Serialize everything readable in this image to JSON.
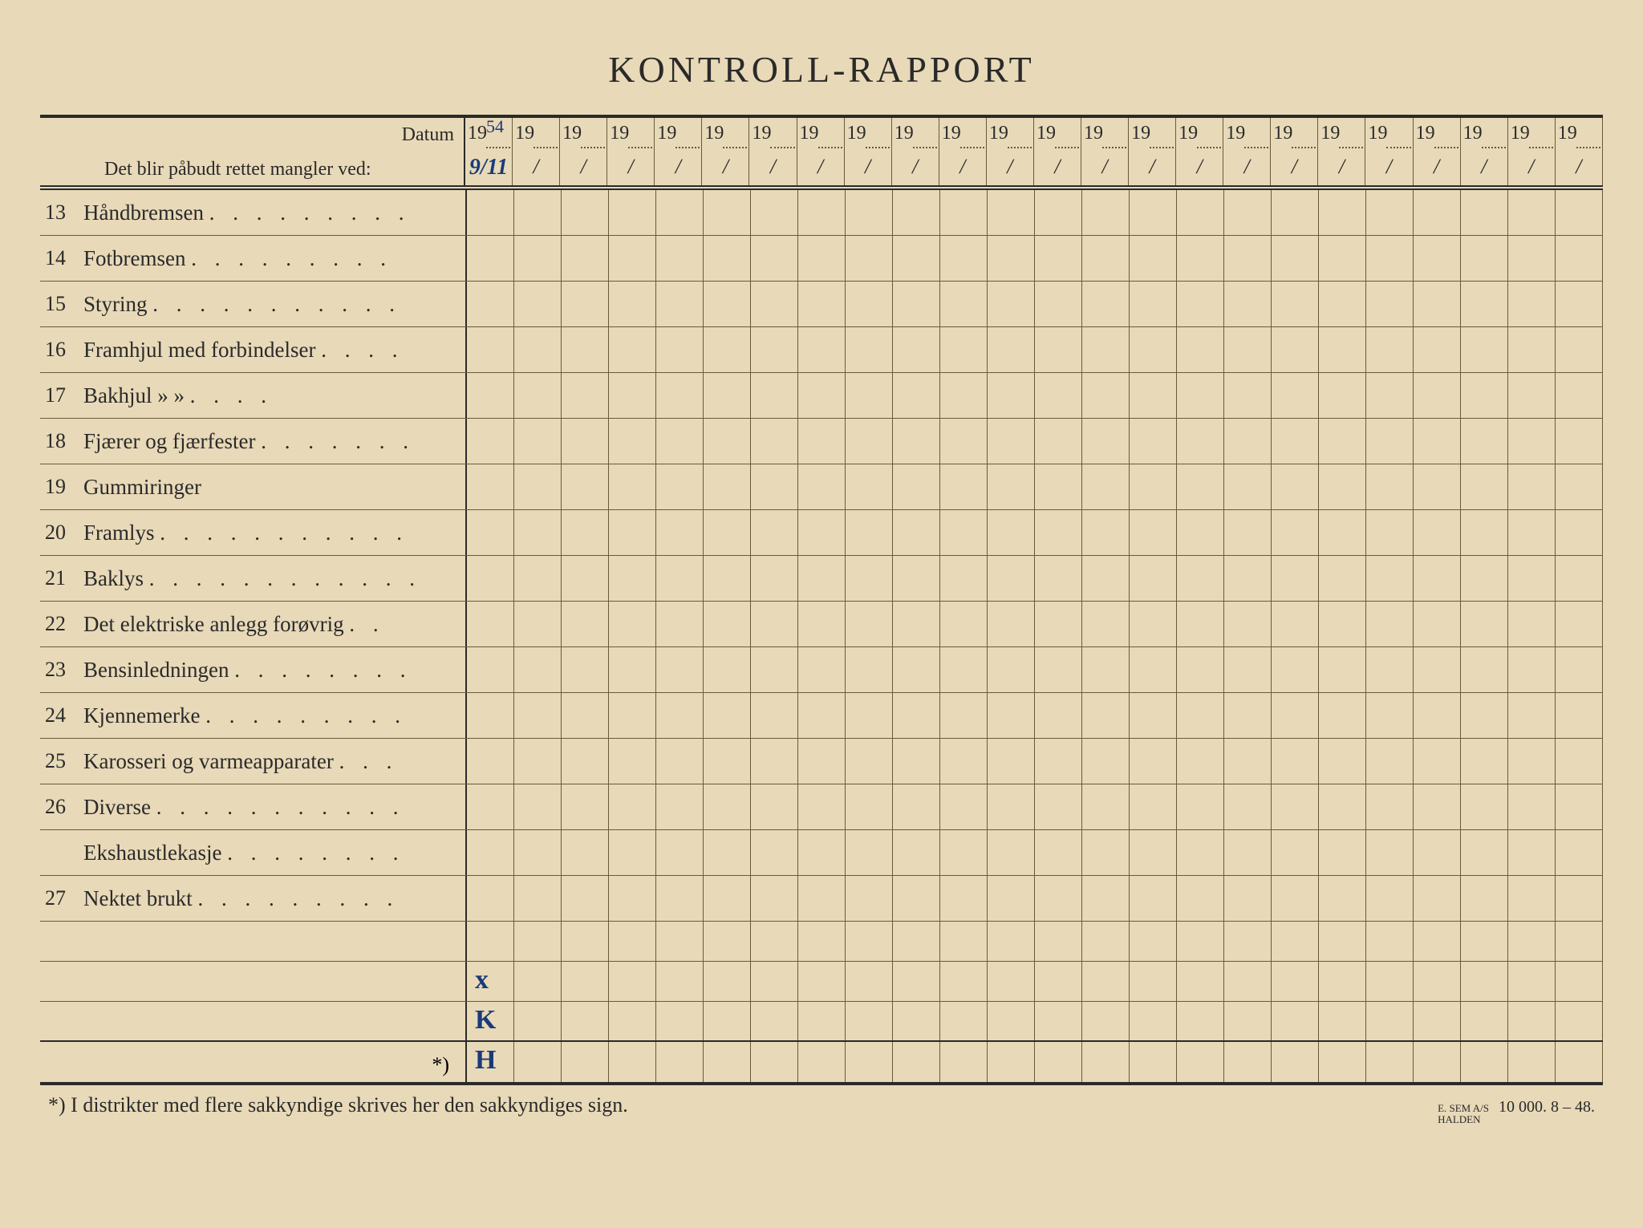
{
  "title": "KONTROLL-RAPPORT",
  "header": {
    "datum_label": "Datum",
    "mangler_label": "Det blir påbudt rettet mangler ved:",
    "year_prefix": "19",
    "slash": "/",
    "first_year_handwritten": "54",
    "first_date_handwritten": "9/11",
    "num_date_columns": 24
  },
  "items": [
    {
      "num": "13",
      "label": "Håndbremsen",
      "dots": ". . . . . . . . ."
    },
    {
      "num": "14",
      "label": "Fotbremsen",
      "dots": " . . . . . . . . ."
    },
    {
      "num": "15",
      "label": "Styring",
      "dots": " . . . . . . . . . . ."
    },
    {
      "num": "16",
      "label": "Framhjul med forbindelser",
      "dots": ". . . ."
    },
    {
      "num": "17",
      "label": "Bakhjul",
      "ditto": "»        »",
      "dots": "   . . . ."
    },
    {
      "num": "18",
      "label": "Fjærer og fjærfester",
      "dots": ". . . . . . ."
    },
    {
      "num": "19",
      "label": "Gummiringer",
      "dots": ""
    },
    {
      "num": "20",
      "label": "Framlys",
      "dots": ". . . . . . . . . . ."
    },
    {
      "num": "21",
      "label": "Baklys",
      "dots": " . . . . . . . . . . . ."
    },
    {
      "num": "22",
      "label": "Det elektriske anlegg forøvrig",
      "dots": " . ."
    },
    {
      "num": "23",
      "label": "Bensinledningen",
      "dots": " . . . . . . . ."
    },
    {
      "num": "24",
      "label": "Kjennemerke",
      "dots": " . . . . . . . . ."
    },
    {
      "num": "25",
      "label": "Karosseri og varmeapparater",
      "dots": " . . ."
    },
    {
      "num": "26",
      "label": "Diverse",
      "dots": " . . . . . . . . . . ."
    },
    {
      "num": "",
      "label": "Ekshaustlekasje",
      "dots": ". . . . . . . ."
    },
    {
      "num": "27",
      "label": "Nektet brukt",
      "dots": " . . . . . . . . ."
    }
  ],
  "bottom_marks": [
    "x",
    "K",
    "H"
  ],
  "asterisk_label": "*)",
  "footer": {
    "note": "*)   I distrikter med flere sakkyndige skrives her den sakkyndiges sign.",
    "printer_line1": "E. SEM A/S",
    "printer_line2": "HALDEN",
    "print_info": "10 000.   8 – 48."
  },
  "colors": {
    "paper": "#e8d9b8",
    "ink": "#2a2a2a",
    "grid": "#6a5a3a",
    "handwriting": "#1a3a7a"
  }
}
